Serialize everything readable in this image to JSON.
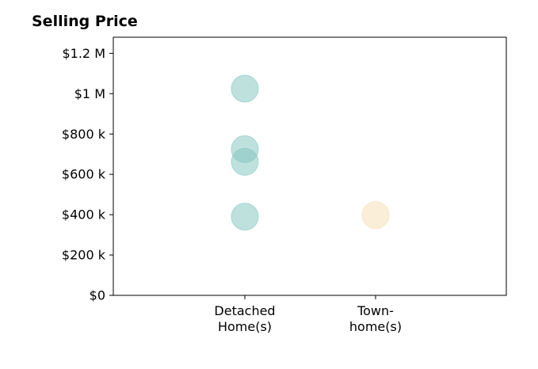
{
  "chart_data": {
    "type": "scatter",
    "title": "Selling Price",
    "xlabel": "",
    "ylabel": "",
    "categories": [
      [
        "Detached",
        "Home(s)"
      ],
      [
        "Town-",
        "home(s)"
      ]
    ],
    "ylim": [
      0,
      1280000
    ],
    "yticks": [
      {
        "value": 0,
        "label": "$0"
      },
      {
        "value": 200000,
        "label": "$200 k"
      },
      {
        "value": 400000,
        "label": "$400 k"
      },
      {
        "value": 600000,
        "label": "$600 k"
      },
      {
        "value": 800000,
        "label": "$800 k"
      },
      {
        "value": 1000000,
        "label": "$1 M"
      },
      {
        "value": 1200000,
        "label": "$1.2 M"
      }
    ],
    "grid": false,
    "legend": "none",
    "series": [
      {
        "category": 0,
        "color": "#80c4bd",
        "values": [
          1025000,
          725000,
          662000,
          390000
        ]
      },
      {
        "category": 1,
        "color": "#f5deb3",
        "values": [
          398000
        ]
      }
    ]
  }
}
